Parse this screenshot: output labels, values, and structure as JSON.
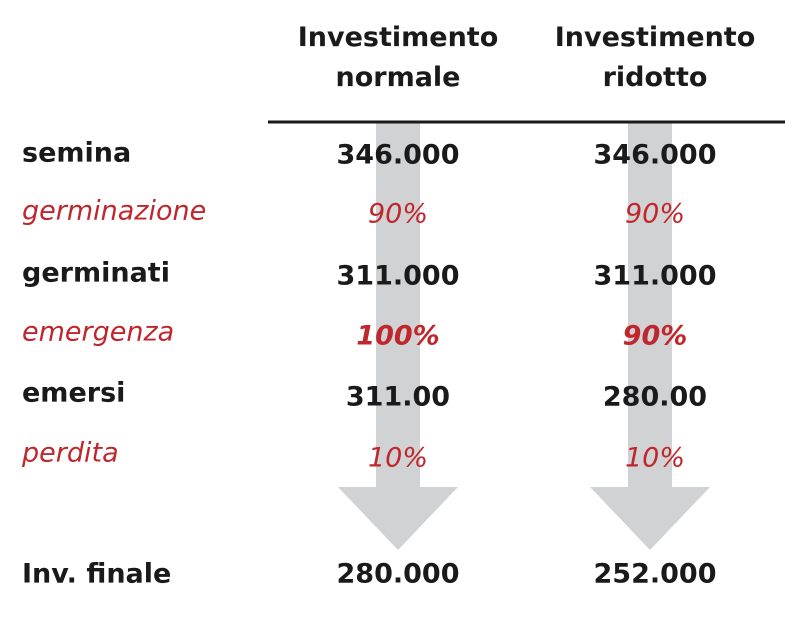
{
  "table": {
    "columns": [
      "Investimento normale",
      "Investimento ridotto"
    ],
    "rows": [
      [
        "semina",
        "346.000",
        "346.000"
      ],
      [
        "germinazione",
        "90%",
        "90%"
      ],
      [
        "germinati",
        "311.000",
        "311.000"
      ],
      [
        "emergenza",
        "100%",
        "90%"
      ],
      [
        "emersi",
        "311.00",
        "280.00"
      ],
      [
        "perdita",
        "10%",
        "10%"
      ],
      [
        "Inv. finale",
        "280.000",
        "252.000"
      ]
    ]
  }
}
